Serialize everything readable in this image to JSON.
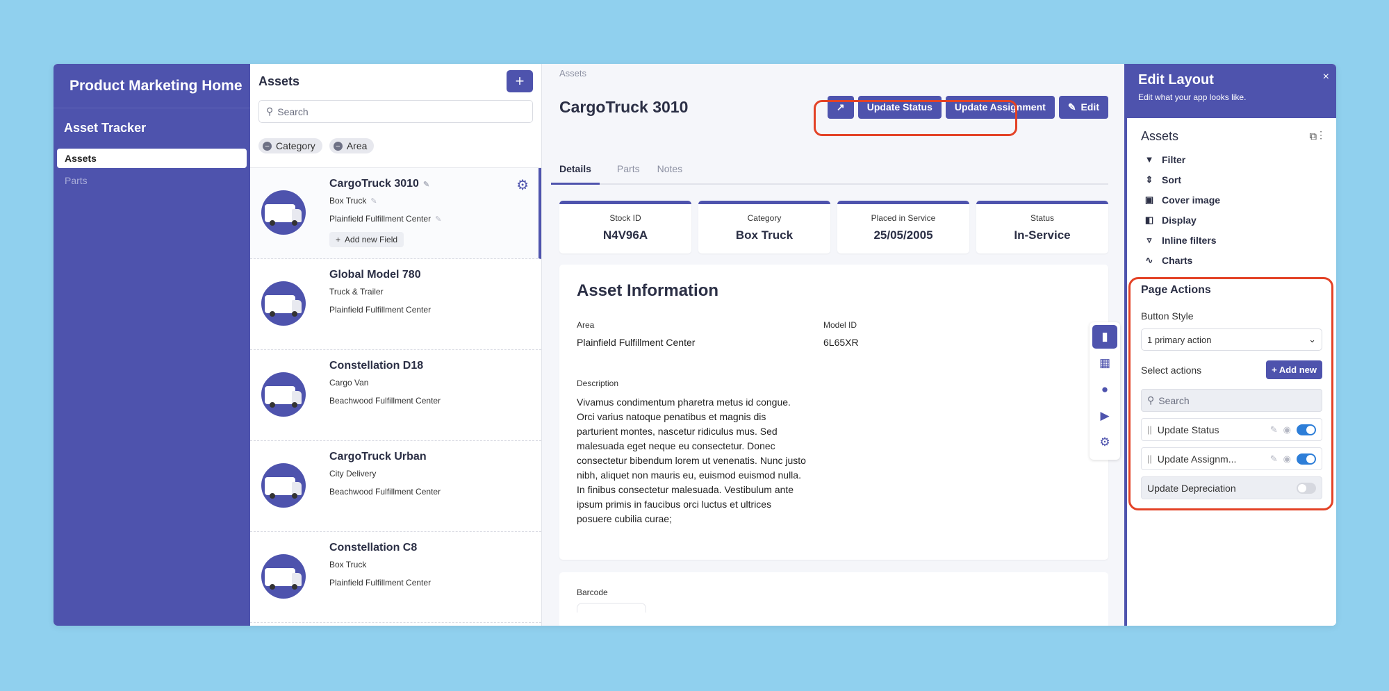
{
  "sidebar": {
    "home_title": "Product Marketing Home",
    "app_name": "Asset Tracker",
    "items": [
      {
        "label": "Assets",
        "active": true
      },
      {
        "label": "Parts",
        "active": false
      }
    ]
  },
  "list": {
    "title": "Assets",
    "add_label": "+",
    "search_placeholder": "Search",
    "chips": [
      "Category",
      "Area"
    ],
    "add_field_label": "Add new Field",
    "items": [
      {
        "name": "CargoTruck 3010",
        "type": "Box Truck",
        "location": "Plainfield Fulfillment Center"
      },
      {
        "name": "Global Model 780",
        "type": "Truck & Trailer",
        "location": "Plainfield Fulfillment Center"
      },
      {
        "name": "Constellation D18",
        "type": "Cargo Van",
        "location": "Beachwood Fulfillment Center"
      },
      {
        "name": "CargoTruck Urban",
        "type": "City Delivery",
        "location": "Beachwood Fulfillment Center"
      },
      {
        "name": "Constellation C8",
        "type": "Box Truck",
        "location": "Plainfield Fulfillment Center"
      }
    ]
  },
  "main": {
    "breadcrumb": "Assets",
    "title": "CargoTruck 3010",
    "actions": {
      "update_status": "Update Status",
      "update_assignment": "Update Assignment",
      "edit": "Edit"
    },
    "tabs": [
      "Details",
      "Parts",
      "Notes"
    ],
    "stats": [
      {
        "label": "Stock ID",
        "value": "N4V96A"
      },
      {
        "label": "Category",
        "value": "Box Truck"
      },
      {
        "label": "Placed in Service",
        "value": "25/05/2005"
      },
      {
        "label": "Status",
        "value": "In-Service"
      }
    ],
    "asset_info": {
      "heading": "Asset Information",
      "area_label": "Area",
      "area_value": "Plainfield Fulfillment Center",
      "model_label": "Model ID",
      "model_value": "6L65XR",
      "description_label": "Description",
      "description": "Vivamus condimentum pharetra metus id congue. Orci varius natoque penatibus et magnis dis parturient montes, nascetur ridiculus mus. Sed malesuada eget neque eu consectetur. Donec consectetur bibendum lorem ut venenatis. Nunc justo nibh, aliquet non mauris eu, euismod euismod nulla. In finibus consectetur malesuada. Vestibulum ante ipsum primis in faucibus orci luctus et ultrices posuere cubilia curae;"
    },
    "barcode_label": "Barcode"
  },
  "panel": {
    "title": "Edit Layout",
    "subtitle": "Edit what your app looks like.",
    "close": "×",
    "section_title": "Assets",
    "options": [
      {
        "label": "Filter",
        "icon": "filter-icon"
      },
      {
        "label": "Sort",
        "icon": "sort-icon"
      },
      {
        "label": "Cover image",
        "icon": "image-icon"
      },
      {
        "label": "Display",
        "icon": "display-icon"
      },
      {
        "label": "Inline filters",
        "icon": "inline-filter-icon"
      },
      {
        "label": "Charts",
        "icon": "chart-icon"
      }
    ],
    "page_actions": {
      "heading": "Page Actions",
      "button_style_label": "Button Style",
      "button_style_value": "1 primary action",
      "select_actions_label": "Select actions",
      "add_new_label": "Add new",
      "search_placeholder": "Search",
      "actions": [
        {
          "label": "Update Status",
          "enabled": true
        },
        {
          "label": "Update Assignm...",
          "enabled": true
        },
        {
          "label": "Update Depreciation",
          "enabled": false
        }
      ]
    }
  },
  "colors": {
    "background": "#90d0ee",
    "brand": "#4e53ad",
    "highlight": "#e34226",
    "toggle_on": "#2d7ed8"
  }
}
